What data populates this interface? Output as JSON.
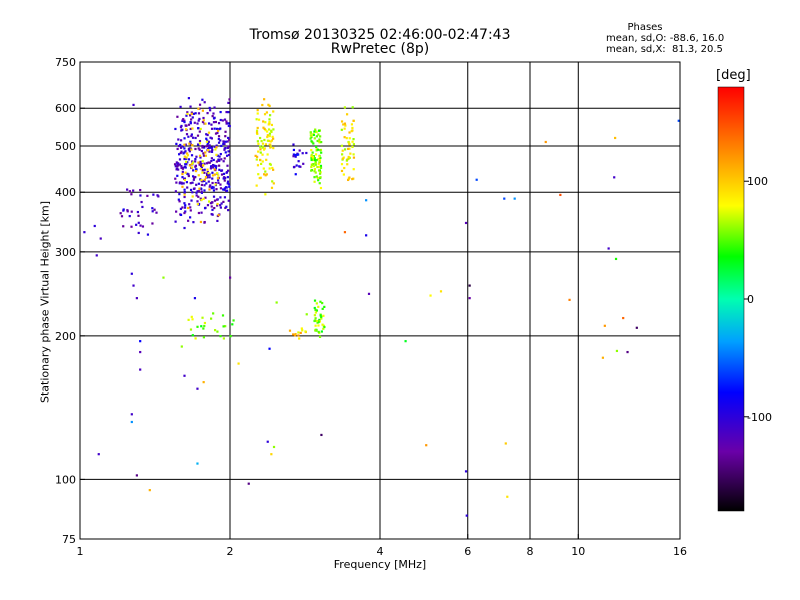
{
  "header": {
    "title_line1": "Tromsø 20130325 02:46:00-02:47:43",
    "title_line2": "RwPretec (8p)",
    "phase_title": "Phases",
    "phase_o": "mean, sd,O: -88.6, 16.0",
    "phase_x": "mean, sd,X:  81.3, 20.5"
  },
  "colorbar": {
    "label": "[deg]",
    "range": [
      -180,
      180
    ],
    "ticks": [
      {
        "value": 100,
        "label": "100"
      },
      {
        "value": 0,
        "label": "0"
      },
      {
        "value": -100,
        "label": "-100"
      }
    ]
  },
  "chart_data": {
    "type": "scatter",
    "title": "Tromsø 20130325 02:46:00-02:47:43",
    "subtitle": "RwPretec (8p)",
    "xlabel": "Frequency [MHz]",
    "ylabel": "Stationary phase Virtual Height [km]",
    "x_scale": "log",
    "y_scale": "log",
    "xlim": [
      1,
      16
    ],
    "ylim": [
      75,
      750
    ],
    "x_ticks": [
      {
        "value": 1,
        "label": "1"
      },
      {
        "value": 2,
        "label": "2"
      },
      {
        "value": 4,
        "label": "4"
      },
      {
        "value": 6,
        "label": "6"
      },
      {
        "value": 8,
        "label": "8"
      },
      {
        "value": 10,
        "label": "10"
      },
      {
        "value": 16,
        "label": "16"
      }
    ],
    "y_ticks": [
      {
        "value": 75,
        "label": "75"
      },
      {
        "value": 100,
        "label": "100"
      },
      {
        "value": 200,
        "label": "200"
      },
      {
        "value": 300,
        "label": "300"
      },
      {
        "value": 400,
        "label": "400"
      },
      {
        "value": 500,
        "label": "500"
      },
      {
        "value": 600,
        "label": "600"
      },
      {
        "value": 750,
        "label": "750"
      }
    ],
    "gridlines_x": [
      2,
      4,
      6,
      8,
      10
    ],
    "gridlines_y": [
      100,
      200,
      300,
      400,
      500,
      600
    ],
    "color_by": "phase_deg",
    "clusters": [
      {
        "x": [
          1.55,
          2.0
        ],
        "y": [
          330,
          650
        ],
        "phase": -110,
        "n": 420
      },
      {
        "x": [
          1.6,
          1.9
        ],
        "y": [
          340,
          620
        ],
        "phase": 95,
        "n": 70
      },
      {
        "x": [
          2.25,
          2.45
        ],
        "y": [
          390,
          650
        ],
        "phase": 85,
        "n": 90
      },
      {
        "x": [
          2.9,
          3.05
        ],
        "y": [
          390,
          560
        ],
        "phase": 60,
        "n": 90
      },
      {
        "x": [
          3.35,
          3.55
        ],
        "y": [
          390,
          620
        ],
        "phase": 85,
        "n": 55
      },
      {
        "x": [
          2.65,
          2.85
        ],
        "y": [
          410,
          520
        ],
        "phase": -95,
        "n": 20
      },
      {
        "x": [
          1.2,
          1.45
        ],
        "y": [
          320,
          420
        ],
        "phase": -115,
        "n": 35
      },
      {
        "x": [
          2.95,
          3.1
        ],
        "y": [
          195,
          240
        ],
        "phase": 55,
        "n": 40
      },
      {
        "x": [
          1.65,
          2.05
        ],
        "y": [
          190,
          230
        ],
        "phase": 55,
        "n": 25
      },
      {
        "x": [
          2.6,
          2.85
        ],
        "y": [
          195,
          210
        ],
        "phase": 95,
        "n": 12
      }
    ],
    "points": [
      {
        "x": 1.02,
        "y": 330,
        "phase": -105
      },
      {
        "x": 1.07,
        "y": 340,
        "phase": -100
      },
      {
        "x": 1.08,
        "y": 295,
        "phase": -110
      },
      {
        "x": 1.1,
        "y": 320,
        "phase": -115
      },
      {
        "x": 1.28,
        "y": 610,
        "phase": -110
      },
      {
        "x": 1.27,
        "y": 270,
        "phase": -100
      },
      {
        "x": 1.28,
        "y": 255,
        "phase": -110
      },
      {
        "x": 1.3,
        "y": 240,
        "phase": -115
      },
      {
        "x": 1.32,
        "y": 195,
        "phase": -80
      },
      {
        "x": 1.32,
        "y": 185,
        "phase": -120
      },
      {
        "x": 1.32,
        "y": 170,
        "phase": -115
      },
      {
        "x": 1.27,
        "y": 137,
        "phase": -110
      },
      {
        "x": 1.27,
        "y": 132,
        "phase": -40
      },
      {
        "x": 1.3,
        "y": 102,
        "phase": -140
      },
      {
        "x": 1.38,
        "y": 95,
        "phase": 110
      },
      {
        "x": 1.09,
        "y": 113,
        "phase": -110
      },
      {
        "x": 1.47,
        "y": 265,
        "phase": 60
      },
      {
        "x": 1.6,
        "y": 190,
        "phase": 60
      },
      {
        "x": 1.62,
        "y": 165,
        "phase": -110
      },
      {
        "x": 1.7,
        "y": 240,
        "phase": -90
      },
      {
        "x": 1.72,
        "y": 155,
        "phase": -110
      },
      {
        "x": 1.77,
        "y": 160,
        "phase": 110
      },
      {
        "x": 1.72,
        "y": 108,
        "phase": -30
      },
      {
        "x": 2.0,
        "y": 265,
        "phase": -130
      },
      {
        "x": 2.08,
        "y": 175,
        "phase": 90
      },
      {
        "x": 2.18,
        "y": 98,
        "phase": -140
      },
      {
        "x": 2.38,
        "y": 120,
        "phase": -100
      },
      {
        "x": 2.42,
        "y": 113,
        "phase": 95
      },
      {
        "x": 2.45,
        "y": 117,
        "phase": 60
      },
      {
        "x": 2.4,
        "y": 188,
        "phase": -80
      },
      {
        "x": 2.48,
        "y": 235,
        "phase": 60
      },
      {
        "x": 2.85,
        "y": 222,
        "phase": 60
      },
      {
        "x": 3.05,
        "y": 124,
        "phase": -150
      },
      {
        "x": 3.4,
        "y": 330,
        "phase": 140
      },
      {
        "x": 3.75,
        "y": 385,
        "phase": -40
      },
      {
        "x": 3.75,
        "y": 325,
        "phase": -90
      },
      {
        "x": 3.8,
        "y": 245,
        "phase": -120
      },
      {
        "x": 4.5,
        "y": 195,
        "phase": 30
      },
      {
        "x": 4.95,
        "y": 118,
        "phase": 120
      },
      {
        "x": 5.05,
        "y": 243,
        "phase": 80
      },
      {
        "x": 5.3,
        "y": 248,
        "phase": 90
      },
      {
        "x": 5.95,
        "y": 345,
        "phase": -120
      },
      {
        "x": 5.95,
        "y": 104,
        "phase": -100
      },
      {
        "x": 5.97,
        "y": 84,
        "phase": -100
      },
      {
        "x": 6.05,
        "y": 255,
        "phase": -160
      },
      {
        "x": 6.05,
        "y": 240,
        "phase": -130
      },
      {
        "x": 6.25,
        "y": 425,
        "phase": -60
      },
      {
        "x": 7.1,
        "y": 388,
        "phase": -60
      },
      {
        "x": 7.45,
        "y": 388,
        "phase": -40
      },
      {
        "x": 7.15,
        "y": 119,
        "phase": 100
      },
      {
        "x": 7.2,
        "y": 92,
        "phase": 90
      },
      {
        "x": 8.6,
        "y": 510,
        "phase": 120
      },
      {
        "x": 9.2,
        "y": 395,
        "phase": 150
      },
      {
        "x": 9.6,
        "y": 238,
        "phase": 130
      },
      {
        "x": 11.3,
        "y": 210,
        "phase": 120
      },
      {
        "x": 11.2,
        "y": 180,
        "phase": 110
      },
      {
        "x": 11.5,
        "y": 305,
        "phase": -110
      },
      {
        "x": 11.8,
        "y": 430,
        "phase": -110
      },
      {
        "x": 11.85,
        "y": 520,
        "phase": 105
      },
      {
        "x": 11.9,
        "y": 290,
        "phase": 40
      },
      {
        "x": 11.95,
        "y": 186,
        "phase": 60
      },
      {
        "x": 12.3,
        "y": 218,
        "phase": 140
      },
      {
        "x": 12.55,
        "y": 185,
        "phase": -140
      },
      {
        "x": 13.1,
        "y": 208,
        "phase": -150
      },
      {
        "x": 15.9,
        "y": 565,
        "phase": -60
      }
    ]
  }
}
